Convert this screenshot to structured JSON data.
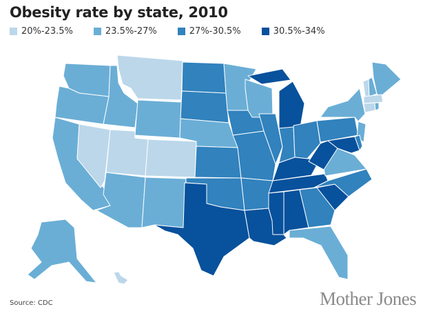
{
  "title": "Obesity rate by state, 2010",
  "legend": [
    {
      "label": "20%-23.5%",
      "color": "#bcd7ea"
    },
    {
      "label": "23.5%-27%",
      "color": "#6aaed6"
    },
    {
      "label": "27%-30.5%",
      "color": "#3182bd"
    },
    {
      "label": "30.5%-34%",
      "color": "#08519c"
    }
  ],
  "states": {
    "WA": 1,
    "OR": 1,
    "CA": 1,
    "NV": 0,
    "ID": 1,
    "MT": 0,
    "WY": 1,
    "UT": 0,
    "CO": 0,
    "AZ": 1,
    "NM": 1,
    "ND": 2,
    "SD": 2,
    "NE": 1,
    "KS": 2,
    "OK": 2,
    "TX": 3,
    "MN": 1,
    "IA": 2,
    "MO": 2,
    "AR": 2,
    "LA": 3,
    "WI": 1,
    "IL": 2,
    "MI": 3,
    "IN": 2,
    "OH": 2,
    "KY": 3,
    "TN": 3,
    "MS": 3,
    "AL": 3,
    "GA": 2,
    "FL": 1,
    "SC": 3,
    "NC": 2,
    "VA": 1,
    "WV": 3,
    "PA": 2,
    "NY": 1,
    "NJ": 1,
    "MD": 3,
    "DE": 2,
    "VT": 0,
    "NH": 1,
    "ME": 1,
    "MA": 0,
    "CT": 0,
    "RI": 1,
    "AK": 1,
    "HI": 0
  },
  "source": "Source: CDC",
  "logo": "Mother Jones"
}
